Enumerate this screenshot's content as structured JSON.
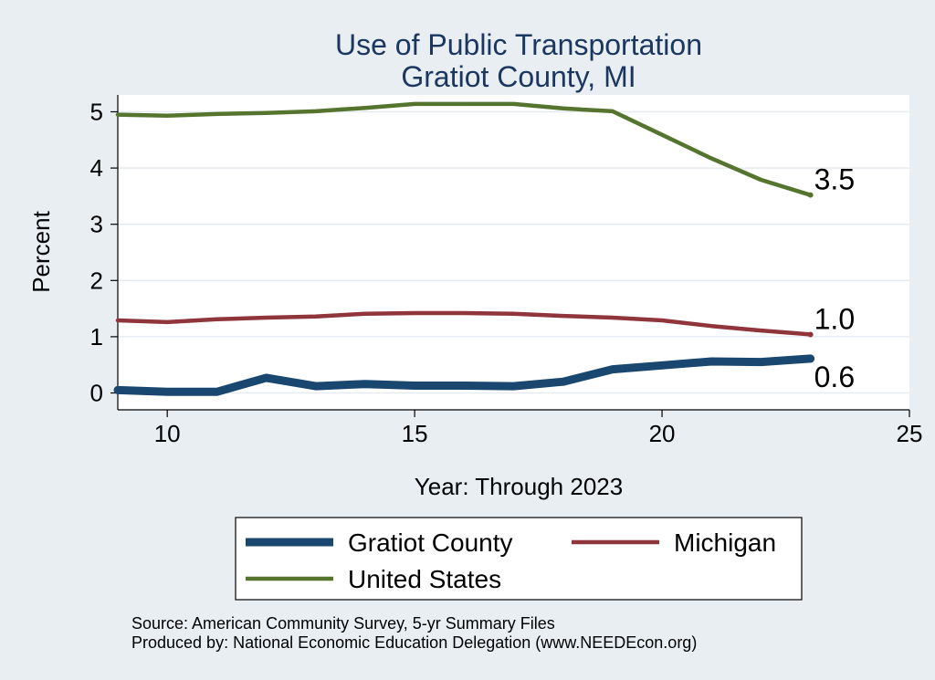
{
  "chart_data": {
    "type": "line",
    "title": [
      "Use of Public Transportation",
      "Gratiot County, MI"
    ],
    "xlabel": "Year: Through 2023",
    "ylabel": "Percent",
    "xlim": [
      9,
      25
    ],
    "ylim": [
      -0.3,
      5.3
    ],
    "xticks": [
      10,
      15,
      20,
      25
    ],
    "yticks": [
      0,
      1,
      2,
      3,
      4,
      5
    ],
    "grid": "horizontal",
    "legend_position": "bottom",
    "series": [
      {
        "name": "Gratiot County",
        "color": "#1a476f",
        "width": "thick",
        "x": [
          9,
          10,
          11,
          12,
          13,
          14,
          15,
          16,
          17,
          18,
          19,
          20,
          21,
          22,
          23
        ],
        "y": [
          0.05,
          0.02,
          0.02,
          0.27,
          0.12,
          0.16,
          0.13,
          0.13,
          0.12,
          0.2,
          0.42,
          0.49,
          0.56,
          0.55,
          0.61
        ],
        "end_label": "0.6"
      },
      {
        "name": "Michigan",
        "color": "#90353b",
        "width": "medium",
        "x": [
          9,
          10,
          11,
          12,
          13,
          14,
          15,
          16,
          17,
          18,
          19,
          20,
          21,
          22,
          23
        ],
        "y": [
          1.29,
          1.26,
          1.31,
          1.34,
          1.36,
          1.41,
          1.42,
          1.42,
          1.41,
          1.37,
          1.34,
          1.29,
          1.19,
          1.11,
          1.04
        ],
        "end_label": "1.0"
      },
      {
        "name": "United States",
        "color": "#55752f",
        "width": "medium",
        "x": [
          9,
          10,
          11,
          12,
          13,
          14,
          15,
          16,
          17,
          18,
          19,
          20,
          21,
          22,
          23
        ],
        "y": [
          4.95,
          4.93,
          4.96,
          4.98,
          5.01,
          5.07,
          5.14,
          5.14,
          5.14,
          5.06,
          5.01,
          4.59,
          4.17,
          3.79,
          3.52
        ],
        "end_label": "3.5"
      }
    ],
    "notes": [
      "Source: American Community Survey, 5-yr Summary Files",
      "Produced by: National Economic Education Delegation (www.NEEDEcon.org)"
    ]
  }
}
